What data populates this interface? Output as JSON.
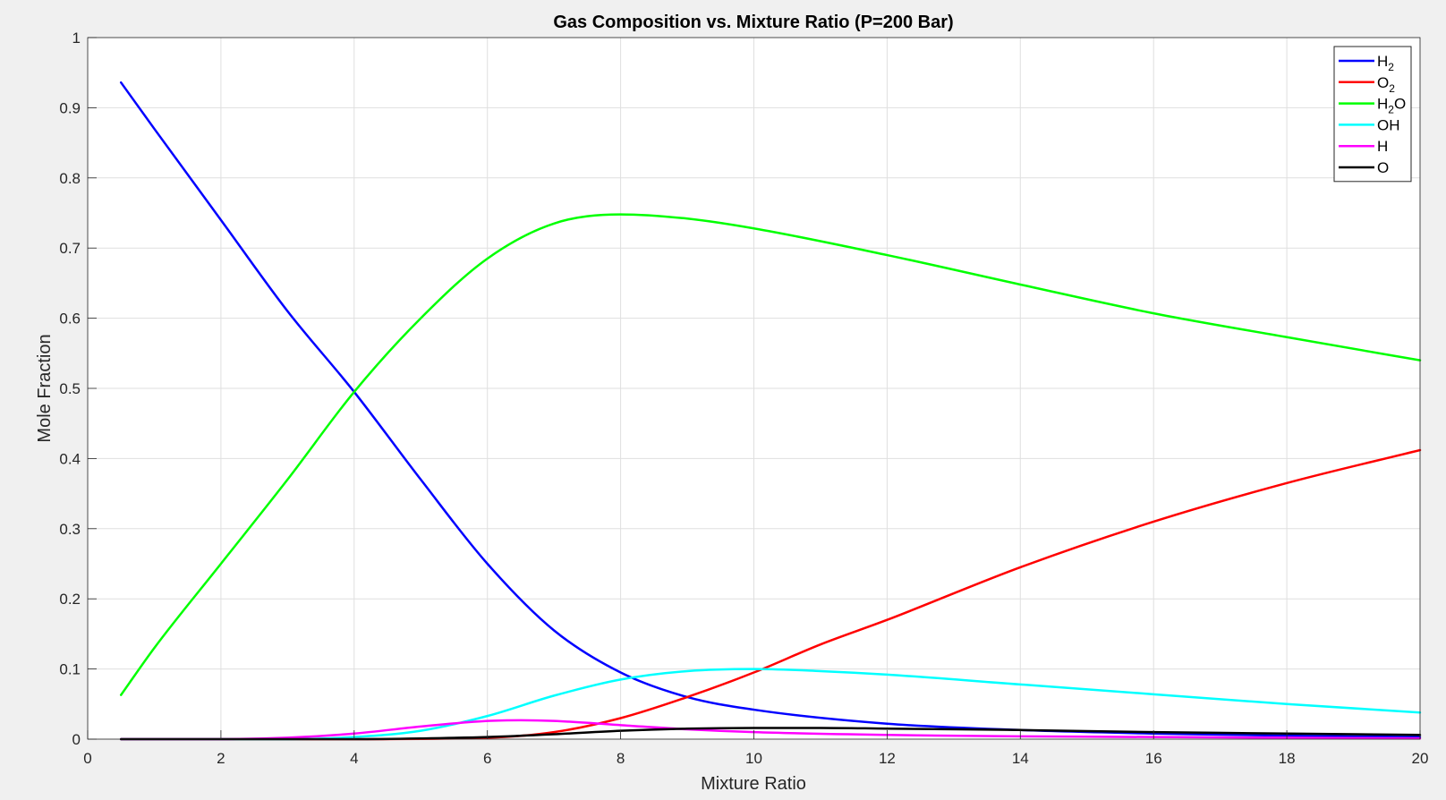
{
  "chart_data": {
    "type": "line",
    "title": "Gas Composition vs. Mixture Ratio (P=200 Bar)",
    "xlabel": "Mixture Ratio",
    "ylabel": "Mole Fraction",
    "xlim": [
      0,
      20
    ],
    "ylim": [
      0,
      1
    ],
    "xticks": [
      0,
      2,
      4,
      6,
      8,
      10,
      12,
      14,
      16,
      18,
      20
    ],
    "yticks": [
      0,
      0.1,
      0.2,
      0.3,
      0.4,
      0.5,
      0.6,
      0.7,
      0.8,
      0.9,
      1
    ],
    "grid": true,
    "legend_position": "top-right",
    "series": [
      {
        "name": "H2",
        "name_main": "H",
        "name_sub": "2",
        "name_tail": "",
        "color": "#0000ff",
        "x": [
          0.5,
          1,
          2,
          3,
          4,
          5,
          6,
          7,
          8,
          9,
          10,
          12,
          14,
          16,
          18,
          20
        ],
        "y": [
          0.936,
          0.87,
          0.74,
          0.61,
          0.495,
          0.37,
          0.25,
          0.155,
          0.095,
          0.06,
          0.042,
          0.022,
          0.013,
          0.008,
          0.005,
          0.003
        ]
      },
      {
        "name": "O2",
        "name_main": "O",
        "name_sub": "2",
        "name_tail": "",
        "color": "#ff0000",
        "x": [
          0.5,
          2,
          4,
          6,
          7,
          8,
          9,
          10,
          11,
          12,
          14,
          16,
          18,
          20
        ],
        "y": [
          0,
          0,
          0,
          0.002,
          0.01,
          0.03,
          0.06,
          0.095,
          0.135,
          0.17,
          0.245,
          0.31,
          0.365,
          0.412
        ]
      },
      {
        "name": "H2O",
        "name_main": "H",
        "name_sub": "2",
        "name_tail": "O",
        "color": "#00ff00",
        "x": [
          0.5,
          1,
          2,
          3,
          4,
          5,
          6,
          7,
          8,
          9,
          10,
          12,
          14,
          16,
          18,
          20
        ],
        "y": [
          0.063,
          0.13,
          0.25,
          0.37,
          0.495,
          0.6,
          0.685,
          0.735,
          0.748,
          0.742,
          0.728,
          0.69,
          0.648,
          0.607,
          0.573,
          0.54
        ]
      },
      {
        "name": "OH",
        "name_main": "OH",
        "name_sub": "",
        "name_tail": "",
        "color": "#00ffff",
        "x": [
          0.5,
          3,
          4,
          5,
          6,
          7,
          8,
          9,
          10,
          11,
          12,
          14,
          16,
          18,
          20
        ],
        "y": [
          0,
          0,
          0.003,
          0.012,
          0.033,
          0.062,
          0.085,
          0.097,
          0.1,
          0.097,
          0.092,
          0.078,
          0.064,
          0.05,
          0.038
        ]
      },
      {
        "name": "H",
        "name_main": "H",
        "name_sub": "",
        "name_tail": "",
        "color": "#ff00ff",
        "x": [
          0.5,
          2,
          3,
          4,
          5,
          6,
          6.5,
          7,
          8,
          9,
          10,
          12,
          14,
          16,
          18,
          20
        ],
        "y": [
          0,
          0,
          0.002,
          0.008,
          0.018,
          0.026,
          0.027,
          0.026,
          0.02,
          0.014,
          0.01,
          0.006,
          0.004,
          0.003,
          0.002,
          0.001
        ]
      },
      {
        "name": "O",
        "name_main": "O",
        "name_sub": "",
        "name_tail": "",
        "color": "#000000",
        "x": [
          0.5,
          4,
          5,
          6,
          7,
          8,
          9,
          10,
          11,
          12,
          14,
          16,
          18,
          20
        ],
        "y": [
          0,
          0,
          0.001,
          0.003,
          0.007,
          0.012,
          0.015,
          0.016,
          0.016,
          0.015,
          0.013,
          0.01,
          0.008,
          0.006
        ]
      }
    ]
  }
}
